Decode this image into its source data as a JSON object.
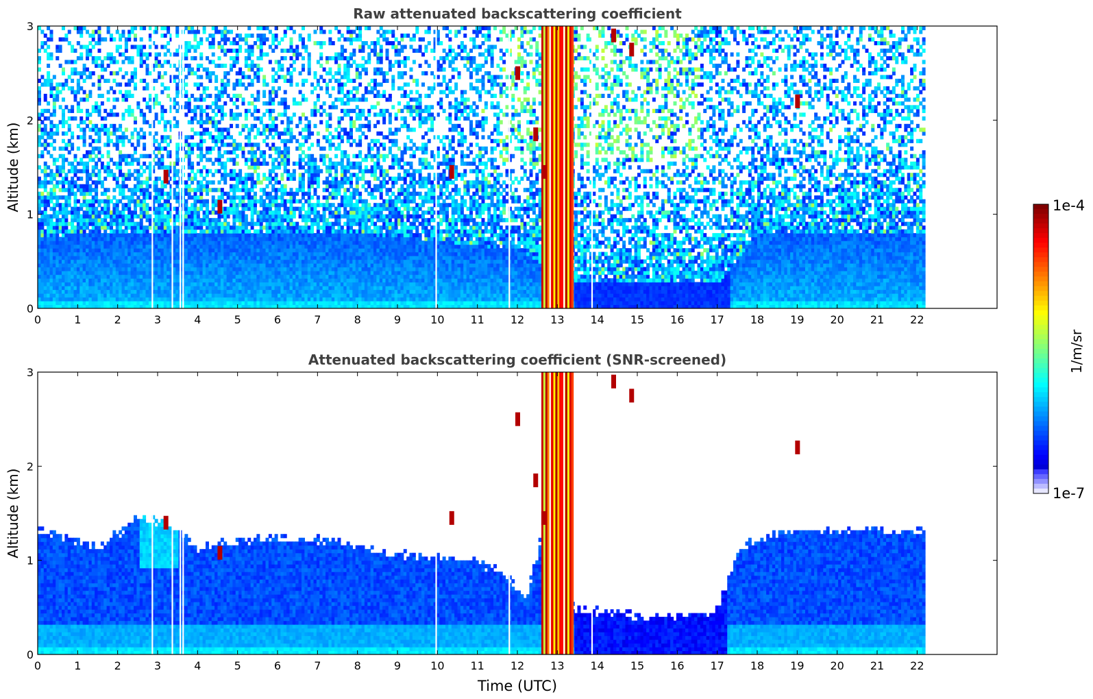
{
  "chart_data": [
    {
      "type": "heatmap",
      "title": "Raw attenuated backscattering coefficient",
      "xlabel": "",
      "ylabel": "Altitude (km)",
      "xlim": [
        0,
        24
      ],
      "ylim": [
        0,
        3
      ],
      "xticks": [
        "0",
        "1",
        "2",
        "3",
        "4",
        "5",
        "6",
        "7",
        "8",
        "9",
        "10",
        "11",
        "12",
        "13",
        "14",
        "15",
        "16",
        "17",
        "18",
        "19",
        "20",
        "21",
        "22"
      ],
      "yticks": [
        "0",
        "1",
        "2",
        "3"
      ],
      "data_time_range": [
        0,
        22.15
      ],
      "boundary_layer_top_km": [
        {
          "t": 0,
          "z": 0.75
        },
        {
          "t": 3,
          "z": 0.8
        },
        {
          "t": 6,
          "z": 0.8
        },
        {
          "t": 9,
          "z": 0.75
        },
        {
          "t": 12,
          "z": 0.6
        },
        {
          "t": 13.4,
          "z": 0.25
        },
        {
          "t": 17,
          "z": 0.25
        },
        {
          "t": 18,
          "z": 0.8
        },
        {
          "t": 22.15,
          "z": 0.8
        }
      ],
      "precip_event": {
        "t_start": 12.6,
        "t_end": 13.4,
        "z_top": 3.0
      },
      "gaps_t": [
        2.85,
        3.35,
        3.55,
        3.62,
        9.95,
        11.78,
        12.8,
        13.15,
        13.85
      ],
      "features": [
        {
          "t": 3.2,
          "z": 1.4,
          "intensity": "high"
        },
        {
          "t": 4.55,
          "z": 1.08,
          "intensity": "high"
        },
        {
          "t": 10.35,
          "z": 1.45,
          "intensity": "high"
        },
        {
          "t": 12.0,
          "z": 2.5,
          "intensity": "high"
        },
        {
          "t": 12.45,
          "z": 1.85,
          "intensity": "high"
        },
        {
          "t": 12.65,
          "z": 1.45,
          "intensity": "high"
        },
        {
          "t": 14.4,
          "z": 2.9,
          "intensity": "high"
        },
        {
          "t": 14.85,
          "z": 2.75,
          "intensity": "high"
        },
        {
          "t": 19.0,
          "z": 2.2,
          "intensity": "high"
        }
      ]
    },
    {
      "type": "heatmap",
      "title": "Attenuated backscattering coefficient (SNR-screened)",
      "xlabel": "Time (UTC)",
      "ylabel": "Altitude (km)",
      "xlim": [
        0,
        24
      ],
      "ylim": [
        0,
        3
      ],
      "xticks": [
        "0",
        "1",
        "2",
        "3",
        "4",
        "5",
        "6",
        "7",
        "8",
        "9",
        "10",
        "11",
        "12",
        "13",
        "14",
        "15",
        "16",
        "17",
        "18",
        "19",
        "20",
        "21",
        "22"
      ],
      "yticks": [
        "0",
        "1",
        "2",
        "3"
      ],
      "data_time_range": [
        0,
        22.15
      ],
      "screened_layer_top_km": [
        {
          "t": 0,
          "z": 1.3
        },
        {
          "t": 1.5,
          "z": 1.1
        },
        {
          "t": 2.5,
          "z": 1.45
        },
        {
          "t": 3.3,
          "z": 1.35
        },
        {
          "t": 4.0,
          "z": 1.1
        },
        {
          "t": 5.0,
          "z": 1.2
        },
        {
          "t": 7.0,
          "z": 1.2
        },
        {
          "t": 9.0,
          "z": 1.05
        },
        {
          "t": 10.5,
          "z": 1.0
        },
        {
          "t": 11.5,
          "z": 0.9
        },
        {
          "t": 12.2,
          "z": 0.6
        },
        {
          "t": 12.6,
          "z": 1.3
        },
        {
          "t": 13.4,
          "z": 0.45
        },
        {
          "t": 15.0,
          "z": 0.4
        },
        {
          "t": 16.5,
          "z": 0.4
        },
        {
          "t": 17.0,
          "z": 0.5
        },
        {
          "t": 17.5,
          "z": 1.1
        },
        {
          "t": 18.5,
          "z": 1.3
        },
        {
          "t": 22.15,
          "z": 1.3
        }
      ]
    }
  ],
  "colorbar": {
    "label": "1/m/sr",
    "max_label": "1e-4",
    "min_label": "1e-7",
    "scale": "log",
    "range": [
      1e-07,
      0.0001
    ],
    "colormap": "jet"
  }
}
